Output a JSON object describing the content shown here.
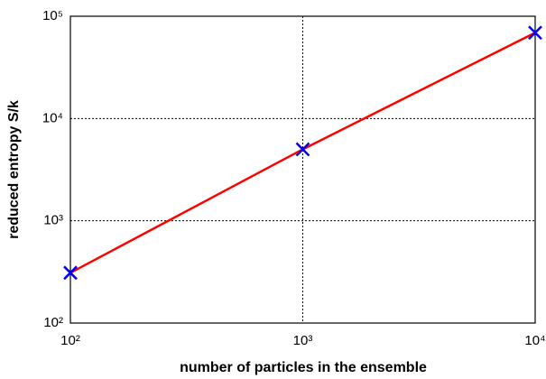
{
  "chart_data": {
    "type": "line",
    "xlabel": "number of particles in the ensemble",
    "ylabel": "reduced entropy S/k",
    "x": [
      100,
      1000,
      10000
    ],
    "series": [
      {
        "values": [
          310,
          5000,
          69000
        ],
        "color": "#ff0000",
        "marker_color": "#0000ff",
        "marker": "x"
      }
    ],
    "xscale": "log",
    "yscale": "log",
    "xlim": [
      100,
      10000
    ],
    "ylim": [
      100,
      100000
    ],
    "xticks": [
      {
        "value": 100,
        "label": "10²"
      },
      {
        "value": 1000,
        "label": "10³"
      },
      {
        "value": 10000,
        "label": "10⁴"
      }
    ],
    "yticks": [
      {
        "value": 100,
        "label": "10²"
      },
      {
        "value": 1000,
        "label": "10³"
      },
      {
        "value": 10000,
        "label": "10⁴"
      },
      {
        "value": 100000,
        "label": "10⁵"
      }
    ],
    "grid": true
  }
}
